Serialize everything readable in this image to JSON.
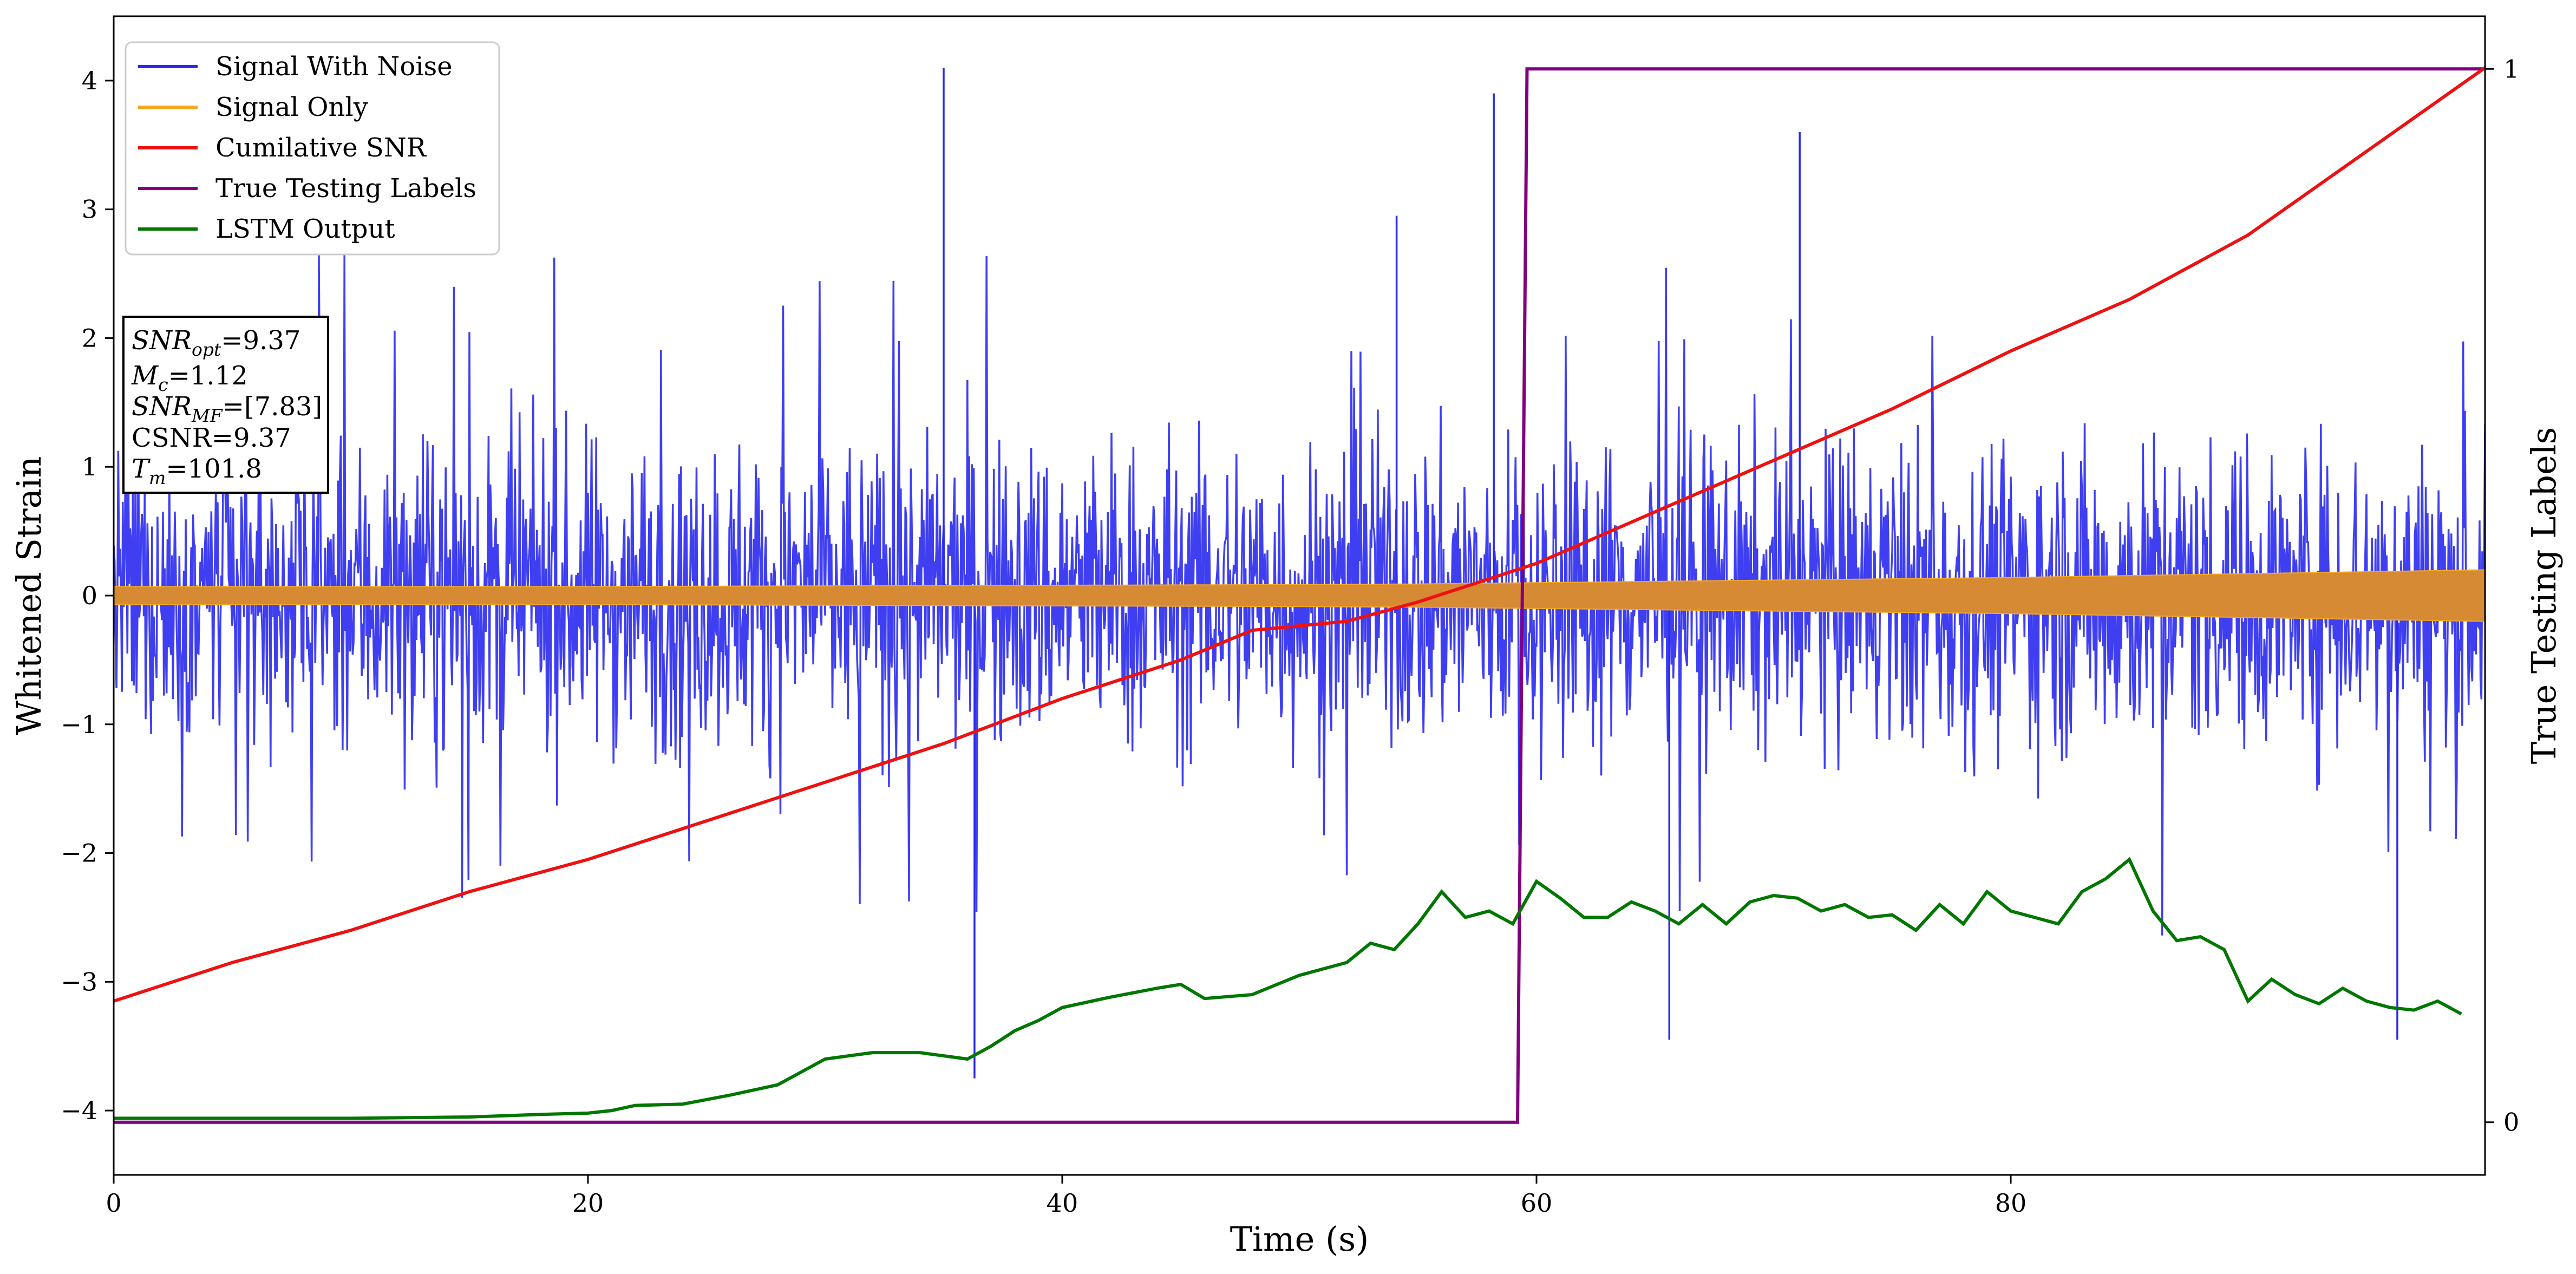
{
  "chart_data": {
    "type": "line",
    "xlabel": "Time (s)",
    "ylabel": "Whitened Strain",
    "ylabel_right": "True Testing Labels",
    "xlim": [
      0,
      100
    ],
    "ylim": [
      -4.5,
      4.5
    ],
    "ylim_right": [
      -0.05,
      1.05
    ],
    "x_ticks": [
      0,
      20,
      40,
      60,
      80
    ],
    "y_ticks": [
      -4,
      -3,
      -2,
      -1,
      0,
      1,
      2,
      3,
      4
    ],
    "y_ticks_right": [
      0,
      1
    ],
    "grid": false,
    "legend_position": "top-left",
    "colors": {
      "noise": "#2a2af0",
      "signal": "#f5a623",
      "signal_fill": "#d58a33",
      "csnr": "#ee1111",
      "labels": "#800080",
      "lstm": "#007700"
    },
    "series": [
      {
        "name": "Signal With Noise",
        "axis": "left",
        "description_values": {
          "typical_range": [
            -2.6,
            2.6
          ],
          "max_spike": 4.1,
          "min_spike": -3.75
        }
      },
      {
        "name": "Signal Only",
        "axis": "left",
        "x": [
          0,
          20,
          40,
          50,
          55,
          60,
          70,
          80,
          90,
          100
        ],
        "amplitude": [
          0.07,
          0.07,
          0.08,
          0.085,
          0.09,
          0.1,
          0.12,
          0.14,
          0.17,
          0.2
        ]
      },
      {
        "name": "Cumilative SNR",
        "axis": "left",
        "x": [
          0,
          5,
          10,
          15,
          20,
          25,
          30,
          35,
          40,
          45,
          48,
          52,
          55,
          60,
          65,
          70,
          75,
          80,
          85,
          90,
          95,
          100
        ],
        "y": [
          -3.15,
          -2.85,
          -2.6,
          -2.3,
          -2.05,
          -1.75,
          -1.45,
          -1.15,
          -0.8,
          -0.5,
          -0.27,
          -0.2,
          -0.05,
          0.25,
          0.65,
          1.05,
          1.45,
          1.9,
          2.3,
          2.8,
          3.45,
          4.1
        ]
      },
      {
        "name": "True Testing Labels",
        "axis": "right",
        "x": [
          0,
          59.2,
          59.6,
          100
        ],
        "y": [
          0,
          0,
          1,
          1
        ]
      },
      {
        "name": "LSTM Output",
        "axis": "left",
        "x": [
          0,
          10,
          15,
          18,
          20,
          21,
          22,
          24,
          26,
          28,
          30,
          32,
          34,
          36,
          37,
          38,
          39,
          40,
          42,
          44,
          45,
          46,
          48,
          50,
          52,
          53,
          54,
          55,
          56,
          57,
          58,
          59,
          60,
          61,
          62,
          63,
          64,
          65,
          66,
          67,
          68,
          69,
          70,
          71,
          72,
          73,
          74,
          75,
          76,
          77,
          78,
          79,
          80,
          81,
          82,
          83,
          84,
          85,
          86,
          87,
          88,
          89,
          90,
          91,
          92,
          93,
          94,
          95,
          96,
          97,
          98,
          99
        ],
        "y": [
          -4.06,
          -4.06,
          -4.05,
          -4.03,
          -4.02,
          -4.0,
          -3.96,
          -3.95,
          -3.88,
          -3.8,
          -3.6,
          -3.55,
          -3.55,
          -3.6,
          -3.5,
          -3.38,
          -3.3,
          -3.2,
          -3.12,
          -3.05,
          -3.02,
          -3.13,
          -3.1,
          -2.95,
          -2.85,
          -2.7,
          -2.75,
          -2.55,
          -2.3,
          -2.5,
          -2.45,
          -2.55,
          -2.22,
          -2.35,
          -2.5,
          -2.5,
          -2.38,
          -2.45,
          -2.55,
          -2.4,
          -2.55,
          -2.38,
          -2.33,
          -2.35,
          -2.45,
          -2.4,
          -2.5,
          -2.48,
          -2.6,
          -2.4,
          -2.55,
          -2.3,
          -2.45,
          -2.5,
          -2.55,
          -2.3,
          -2.2,
          -2.05,
          -2.45,
          -2.68,
          -2.65,
          -2.75,
          -3.15,
          -2.98,
          -3.1,
          -3.17,
          -3.05,
          -3.15,
          -3.2,
          -3.22,
          -3.15,
          -3.25
        ]
      }
    ],
    "legend": [
      "Signal With Noise",
      "Signal Only",
      "Cumilative SNR",
      "True Testing Labels",
      "LSTM Output"
    ],
    "annotation": {
      "snr_opt_base": "SNR",
      "snr_opt_sub": "opt",
      "snr_opt_val": "=9.37",
      "mc_base": "M",
      "mc_sub": "c",
      "mc_val": "=1.12",
      "snr_mf_base": "SNR",
      "snr_mf_sub": "MF",
      "snr_mf_val": "=[7.83]",
      "csnr": "CSNR=9.37",
      "tm_base": "T",
      "tm_sub": "m",
      "tm_val": "=101.8"
    }
  }
}
